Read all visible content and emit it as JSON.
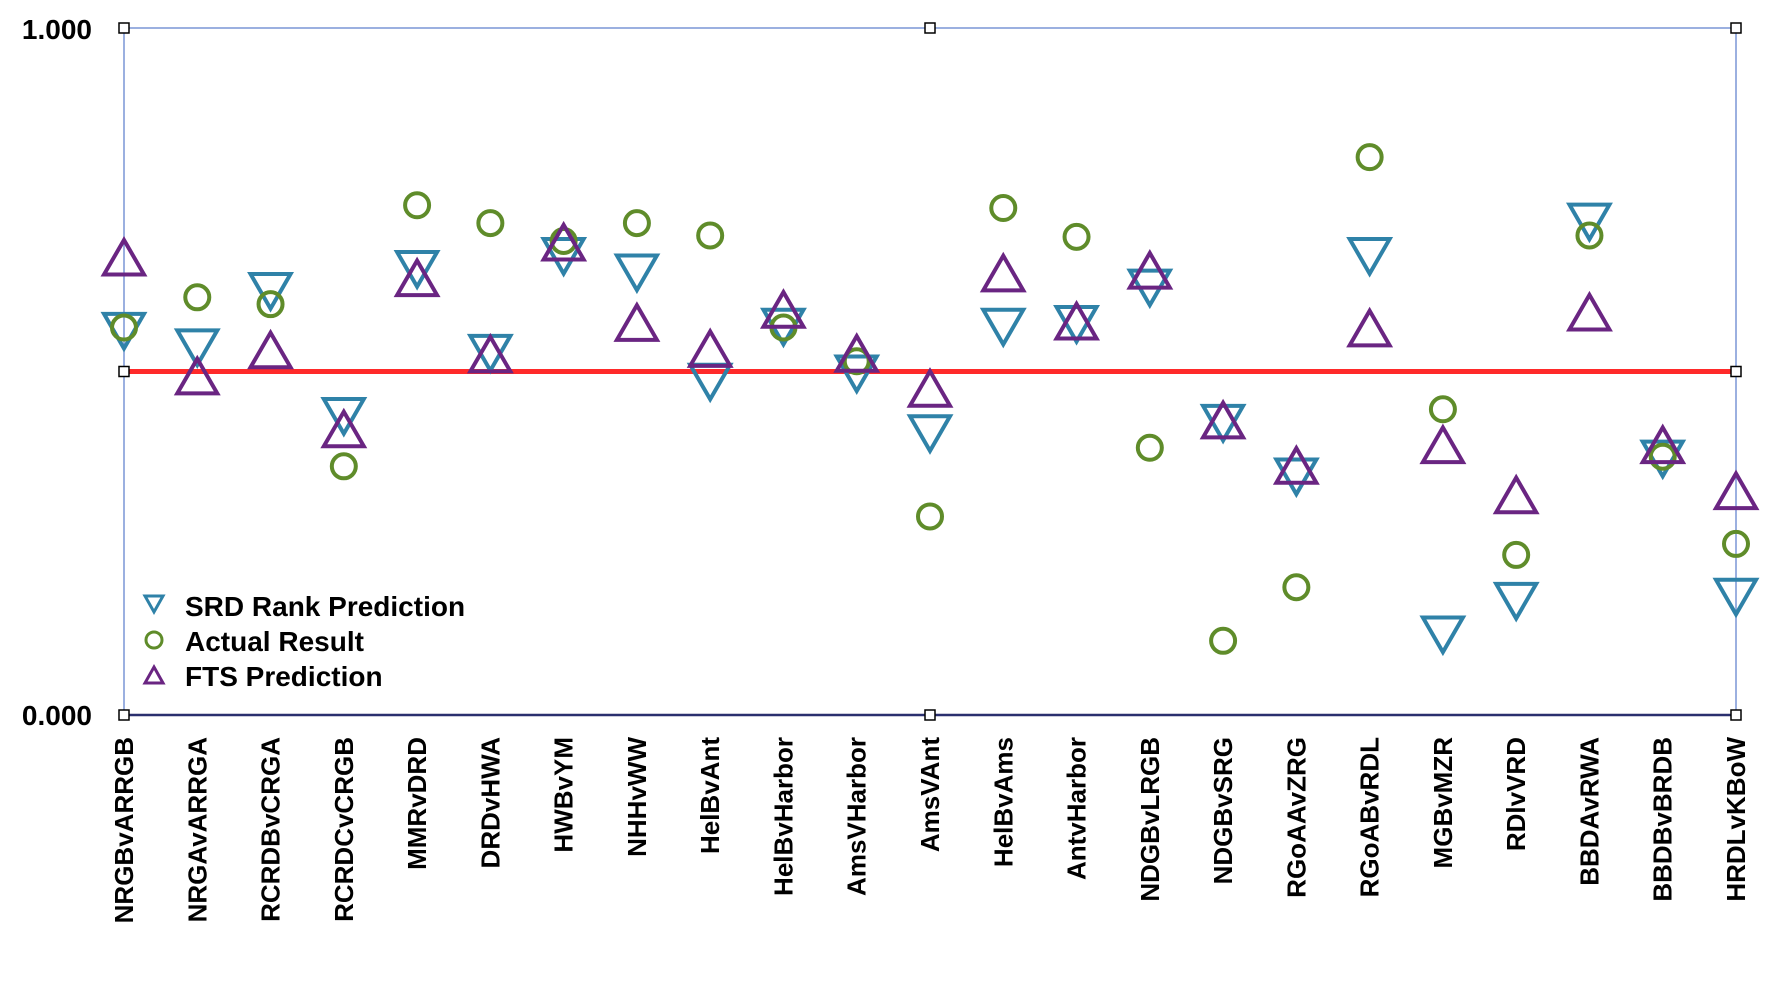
{
  "chart_data": {
    "type": "scatter",
    "categories": [
      "NRGBvARRGB",
      "NRGAvARRGA",
      "RCRDBvCRGA",
      "RCRDCvCRGB",
      "MMRvDRD",
      "DRDvHWA",
      "HWBvYM",
      "NHHvWW",
      "HelBvAnt",
      "HelBvHarbor",
      "AmsVHarbor",
      "AmsVAnt",
      "HelBvAms",
      "AntvHarbor",
      "NDGBvLRGB",
      "NDGBvSRG",
      "RGoAAvZRG",
      "RGoABvRDL",
      "MGBvMZR",
      "RDlvVRD",
      "BBDAvRWA",
      "BBDBvBRDB",
      "HRDLvKBoW"
    ],
    "y_tick_labels": [
      "1.000",
      "0.000"
    ],
    "ylim": [
      0,
      1
    ],
    "reference_line": {
      "y": 0.5,
      "color": "#ff2a2a"
    },
    "series": [
      {
        "name": "SRD Rank Prediction",
        "marker": "triangle-down",
        "color": "#2f82a8",
        "values": [
          0.567,
          0.543,
          0.625,
          0.443,
          0.657,
          0.535,
          0.676,
          0.652,
          0.493,
          0.573,
          0.505,
          0.418,
          0.573,
          0.577,
          0.63,
          0.433,
          0.355,
          0.676,
          0.125,
          0.174,
          0.726,
          0.381,
          0.18
        ]
      },
      {
        "name": "Actual Result",
        "marker": "circle",
        "color": "#5f8c2a",
        "values": [
          0.564,
          0.608,
          0.598,
          0.362,
          0.742,
          0.716,
          0.69,
          0.716,
          0.698,
          0.564,
          0.515,
          0.289,
          0.738,
          0.696,
          0.389,
          0.108,
          0.186,
          0.812,
          0.445,
          0.233,
          0.698,
          0.376,
          0.249
        ]
      },
      {
        "name": "FTS Prediction",
        "marker": "triangle-up",
        "color": "#6a2582",
        "values": [
          0.658,
          0.485,
          0.523,
          0.408,
          0.628,
          0.517,
          0.68,
          0.563,
          0.525,
          0.582,
          0.518,
          0.467,
          0.635,
          0.565,
          0.639,
          0.421,
          0.355,
          0.555,
          0.385,
          0.312,
          0.578,
          0.385,
          0.318
        ]
      }
    ],
    "grid": false,
    "legend_position": "bottom-left"
  }
}
